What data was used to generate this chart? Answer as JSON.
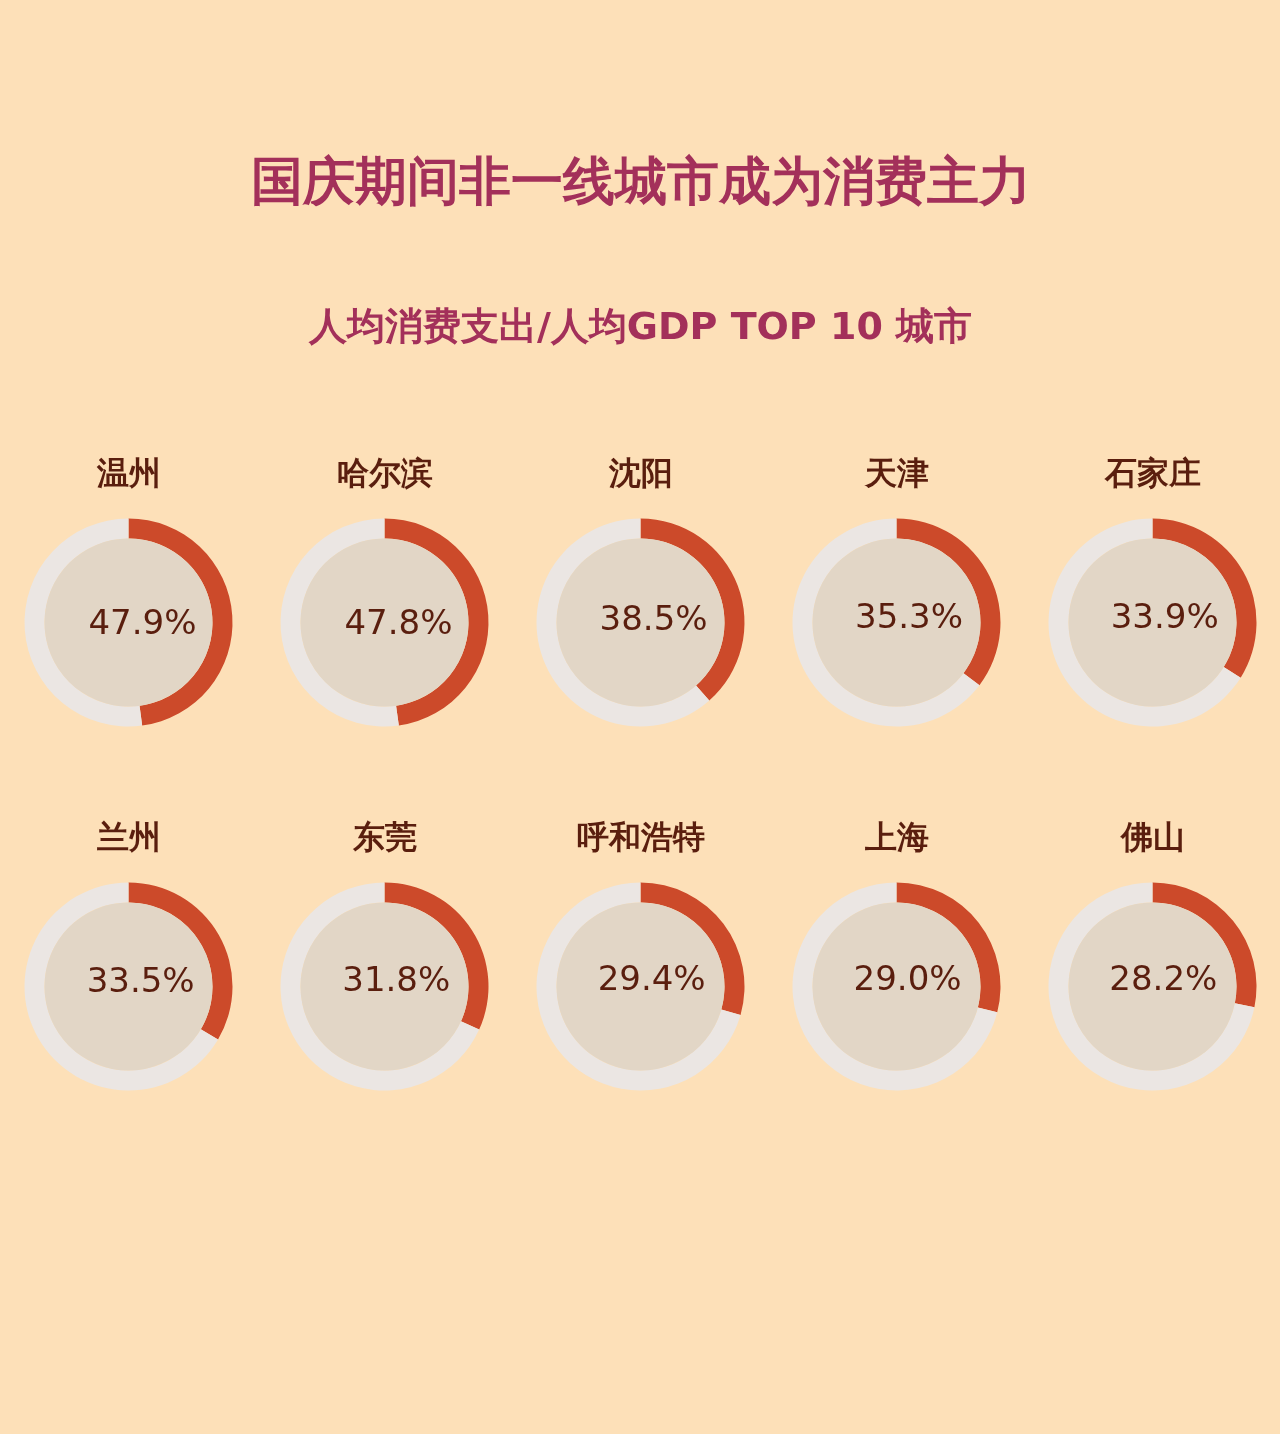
{
  "chart_data": [
    {
      "type": "other",
      "title": "国庆期间非一线城市成为消费主力",
      "subtitle": "人均消费支出/人均GDP TOP 10 城市"
    },
    {
      "type": "donut",
      "title": "温州",
      "categories": [
        null,
        null
      ],
      "values": [
        47.9,
        52.1
      ],
      "colors": [
        "#cc4a2a",
        "#ebe6e3"
      ],
      "value_labels": [
        "47.9%",
        null
      ]
    },
    {
      "type": "donut",
      "title": "哈尔滨",
      "categories": [
        null,
        null
      ],
      "values": [
        47.8,
        52.2
      ],
      "colors": [
        "#cc4a2a",
        "#ebe6e3"
      ],
      "value_labels": [
        "47.8%",
        null
      ]
    },
    {
      "type": "donut",
      "title": "沈阳",
      "categories": [
        null,
        null
      ],
      "values": [
        38.5,
        61.5
      ],
      "colors": [
        "#cc4a2a",
        "#ebe6e3"
      ],
      "value_labels": [
        "38.5%",
        null
      ]
    },
    {
      "type": "donut",
      "title": "天津",
      "categories": [
        null,
        null
      ],
      "values": [
        35.3,
        64.7
      ],
      "colors": [
        "#cc4a2a",
        "#ebe6e3"
      ],
      "value_labels": [
        "35.3%",
        null
      ]
    },
    {
      "type": "donut",
      "title": "石家庄",
      "categories": [
        null,
        null
      ],
      "values": [
        33.9,
        66.1
      ],
      "colors": [
        "#cc4a2a",
        "#ebe6e3"
      ],
      "value_labels": [
        "33.9%",
        null
      ]
    },
    {
      "type": "donut",
      "title": "兰州",
      "categories": [
        null,
        null
      ],
      "values": [
        33.5,
        66.5
      ],
      "colors": [
        "#cc4a2a",
        "#ebe6e3"
      ],
      "value_labels": [
        "33.5%",
        null
      ]
    },
    {
      "type": "donut",
      "title": "东莞",
      "categories": [
        null,
        null
      ],
      "values": [
        31.8,
        68.2
      ],
      "colors": [
        "#cc4a2a",
        "#ebe6e3"
      ],
      "value_labels": [
        "31.8%",
        null
      ]
    },
    {
      "type": "donut",
      "title": "呼和浩特",
      "categories": [
        null,
        null
      ],
      "values": [
        29.4,
        70.6
      ],
      "colors": [
        "#cc4a2a",
        "#ebe6e3"
      ],
      "value_labels": [
        "29.4%",
        null
      ]
    },
    {
      "type": "donut",
      "title": "上海",
      "categories": [
        null,
        null
      ],
      "values": [
        29.0,
        71.0
      ],
      "colors": [
        "#cc4a2a",
        "#ebe6e3"
      ],
      "value_labels": [
        "29.0%",
        null
      ]
    },
    {
      "type": "donut",
      "title": "佛山",
      "categories": [
        null,
        null
      ],
      "values": [
        28.2,
        71.8
      ],
      "colors": [
        "#cc4a2a",
        "#ebe6e3"
      ],
      "value_labels": [
        "28.2%",
        null
      ]
    }
  ]
}
